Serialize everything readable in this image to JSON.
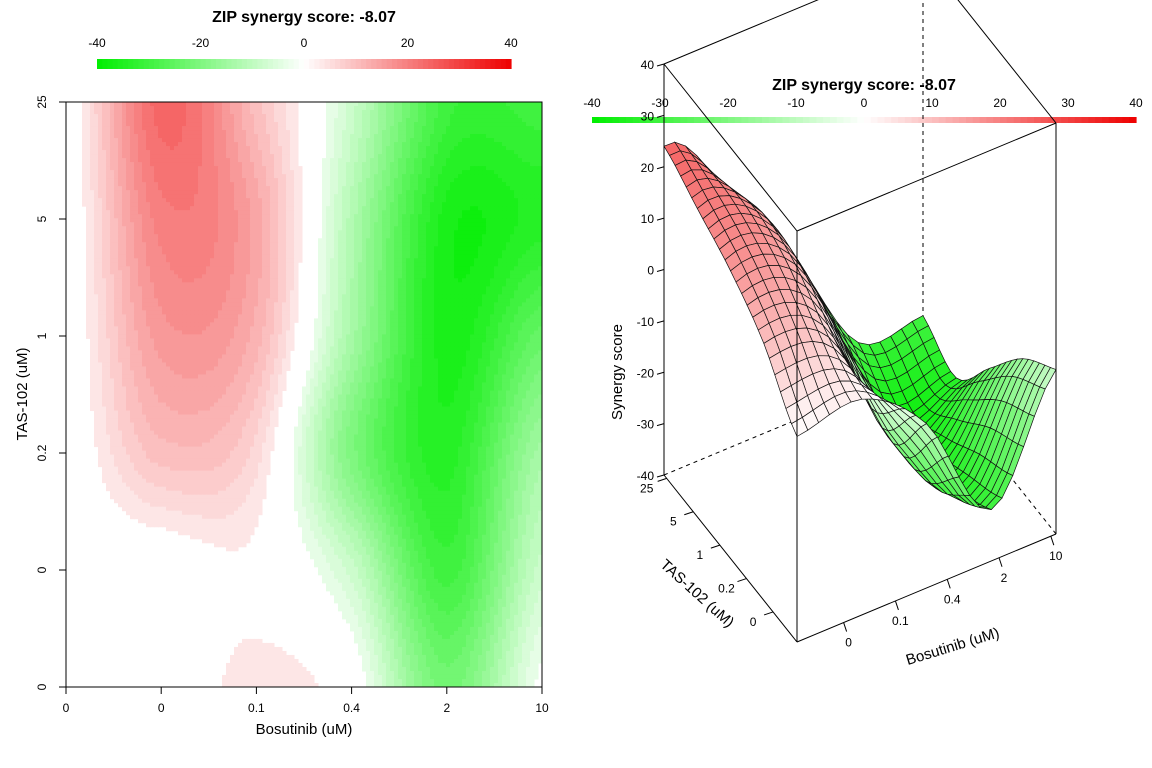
{
  "chart_data": [
    {
      "type": "heatmap",
      "title": "ZIP synergy score: -8.07",
      "xlabel": "Bosutinib (uM)",
      "ylabel": "TAS-102 (uM)",
      "x_ticks": [
        "0",
        "0",
        "0.1",
        "0.4",
        "2",
        "10"
      ],
      "y_ticks": [
        "0",
        "0",
        "0.2",
        "1",
        "5",
        "25"
      ],
      "colorbar": {
        "ticks": [
          "-40",
          "-20",
          "0",
          "20",
          "40"
        ],
        "range": [
          -40,
          40
        ],
        "low_color": "#00ee00",
        "mid_color": "#ffffff",
        "high_color": "#ee0000"
      },
      "grid": false,
      "z_matrix_rows_bottom_to_top": [
        [
          0,
          0,
          4,
          0,
          -22,
          -2
        ],
        [
          0,
          0,
          2,
          -8,
          -30,
          -8
        ],
        [
          0,
          10,
          6,
          -20,
          -34,
          -14
        ],
        [
          0,
          16,
          12,
          -14,
          -36,
          -24
        ],
        [
          0,
          20,
          14,
          -12,
          -36,
          -34
        ],
        [
          0,
          24,
          10,
          -8,
          -30,
          -30
        ]
      ]
    },
    {
      "type": "surface",
      "title": "ZIP synergy score: -8.07",
      "xlabel": "Bosutinib (uM)",
      "ylabel": "TAS-102 (uM)",
      "zlabel": "Synergy score",
      "x_ticks": [
        "0",
        "0.1",
        "0.4",
        "2",
        "10"
      ],
      "y_ticks": [
        "0",
        "0.2",
        "1",
        "5",
        "25"
      ],
      "z_ticks": [
        "-40",
        "-30",
        "-20",
        "-10",
        "0",
        "10",
        "20",
        "30",
        "40"
      ],
      "zlim": [
        -40,
        40
      ],
      "colorbar": {
        "ticks": [
          "-40",
          "-30",
          "-20",
          "-10",
          "0",
          "10",
          "20",
          "30",
          "40"
        ],
        "range": [
          -40,
          40
        ],
        "low_color": "#00ee00",
        "mid_color": "#ffffff",
        "high_color": "#ee0000"
      }
    }
  ]
}
